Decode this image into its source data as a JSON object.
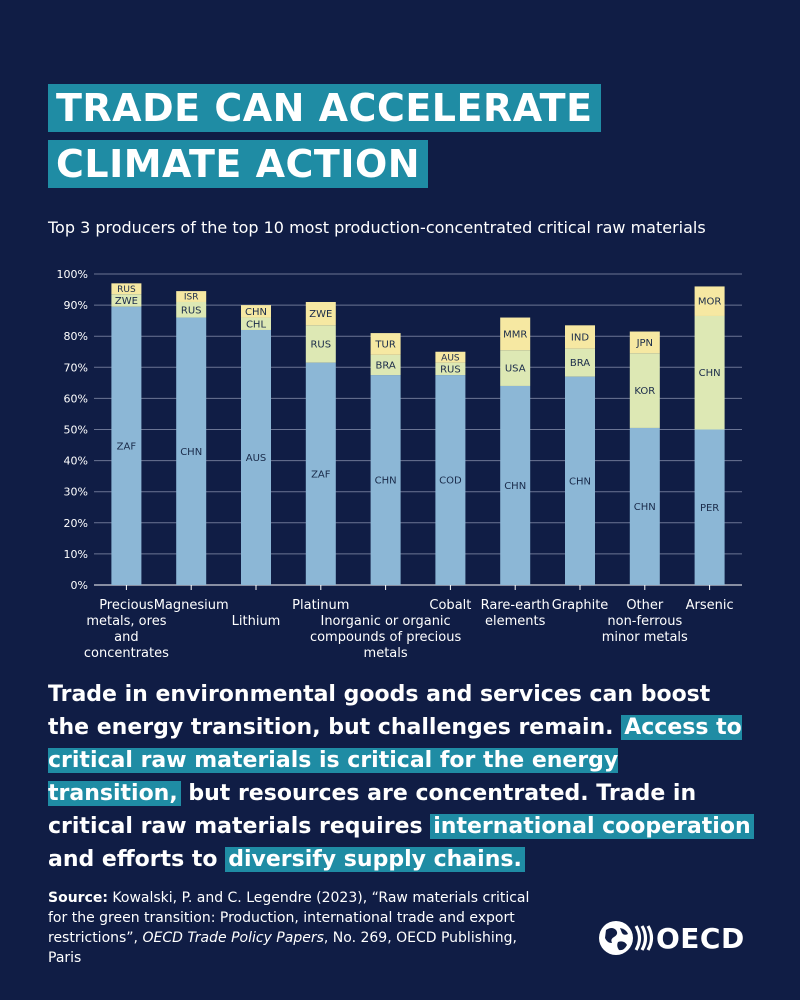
{
  "title": {
    "line1": "TRADE CAN ACCELERATE",
    "line2": "CLIMATE ACTION"
  },
  "subtitle": "Top 3 producers of the top 10 most production-concentrated critical raw materials",
  "chart_data": {
    "type": "bar",
    "stacked": true,
    "ylim": [
      0,
      100
    ],
    "y_ticks": [
      "0%",
      "10%",
      "20%",
      "30%",
      "40%",
      "50%",
      "60%",
      "70%",
      "80%",
      "90%",
      "100%"
    ],
    "grid": true,
    "colors": {
      "first": "#8cb7d6",
      "second": "#dde8b4",
      "third": "#f6e8a2"
    },
    "categories": [
      {
        "label": [
          "Precious",
          "metals, ores",
          "and",
          "concentrates"
        ],
        "segments": [
          {
            "label": "ZAF",
            "value": 89.5
          },
          {
            "label": "ZWE",
            "value": 4
          },
          {
            "label": "RUS",
            "value": 3.5
          }
        ]
      },
      {
        "label": [
          "Magnesium"
        ],
        "segments": [
          {
            "label": "CHN",
            "value": 86
          },
          {
            "label": "RUS",
            "value": 5
          },
          {
            "label": "ISR",
            "value": 3.5
          }
        ]
      },
      {
        "label": [
          "Lithium"
        ],
        "segments": [
          {
            "label": "AUS",
            "value": 82
          },
          {
            "label": "CHL",
            "value": 4
          },
          {
            "label": "CHN",
            "value": 4
          }
        ]
      },
      {
        "label": [
          "Platinum"
        ],
        "segments": [
          {
            "label": "ZAF",
            "value": 71.5
          },
          {
            "label": "RUS",
            "value": 12
          },
          {
            "label": "ZWE",
            "value": 7.5
          }
        ]
      },
      {
        "label": [
          "Inorganic or organic",
          "compounds of precious",
          "metals"
        ],
        "segments": [
          {
            "label": "CHN",
            "value": 67.5
          },
          {
            "label": "BRA",
            "value": 6.5
          },
          {
            "label": "TUR",
            "value": 7
          }
        ]
      },
      {
        "label": [
          "Cobalt"
        ],
        "segments": [
          {
            "label": "COD",
            "value": 67.5
          },
          {
            "label": "RUS",
            "value": 4
          },
          {
            "label": "AUS",
            "value": 3.5
          }
        ]
      },
      {
        "label": [
          "Rare-earth",
          "elements"
        ],
        "segments": [
          {
            "label": "CHN",
            "value": 64
          },
          {
            "label": "USA",
            "value": 11.5
          },
          {
            "label": "MMR",
            "value": 10.5
          }
        ]
      },
      {
        "label": [
          "Graphite"
        ],
        "segments": [
          {
            "label": "CHN",
            "value": 67
          },
          {
            "label": "BRA",
            "value": 9
          },
          {
            "label": "IND",
            "value": 7.5
          }
        ]
      },
      {
        "label": [
          "Other",
          "non-ferrous",
          "minor metals"
        ],
        "segments": [
          {
            "label": "CHN",
            "value": 50.5
          },
          {
            "label": "KOR",
            "value": 24
          },
          {
            "label": "JPN",
            "value": 7
          }
        ]
      },
      {
        "label": [
          "Arsenic"
        ],
        "segments": [
          {
            "label": "PER",
            "value": 50
          },
          {
            "label": "CHN",
            "value": 36.5
          },
          {
            "label": "MOR",
            "value": 9.5
          }
        ]
      }
    ]
  },
  "body": {
    "part1": "Trade in environmental goods and services can boost the energy transition, but challenges remain.",
    "hl1": "Access to critical raw materials is critical for the energy transition,",
    "part2": "but resources are concentrated. Trade in critical raw materials requires",
    "hl2": "international cooperation",
    "part3": "and efforts to",
    "hl3": "diversify supply chains."
  },
  "source": {
    "label": "Source:",
    "text1": "Kowalski, P. and C. Legendre (2023), “Raw materials critical for the green transition: Production, international trade and export restrictions”,",
    "italic": "OECD Trade Policy Papers",
    "text2": ", No. 269, OECD Publishing, Paris"
  },
  "logo": {
    "text": "OECD",
    "icon": "oecd-globe-icon"
  }
}
